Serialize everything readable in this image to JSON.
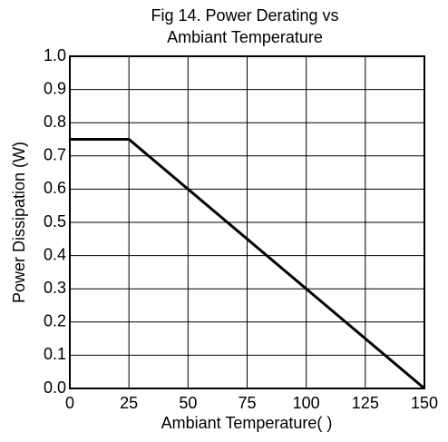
{
  "chart_data": {
    "type": "line",
    "title": [
      "Fig 14. Power Derating vs",
      "Ambiant Temperature"
    ],
    "x_label": "Ambiant Temperature(   )",
    "y_label": "Power Dissipation (W)",
    "x": [
      0,
      25,
      150
    ],
    "series": [
      {
        "color": "#000000",
        "values": [
          0.75,
          0.75,
          0
        ]
      }
    ],
    "xlim": [
      0,
      150
    ],
    "xticks": [
      0,
      25,
      50,
      75,
      100,
      125,
      150
    ],
    "ylim": [
      0,
      1
    ],
    "yticks": [
      {
        "value": 0,
        "label": "0.0"
      },
      0.1,
      0.2,
      0.3,
      0.4,
      0.5,
      0.6,
      0.7,
      0.8,
      0.9,
      {
        "value": 1,
        "label": "1.0"
      }
    ],
    "grid": true
  }
}
